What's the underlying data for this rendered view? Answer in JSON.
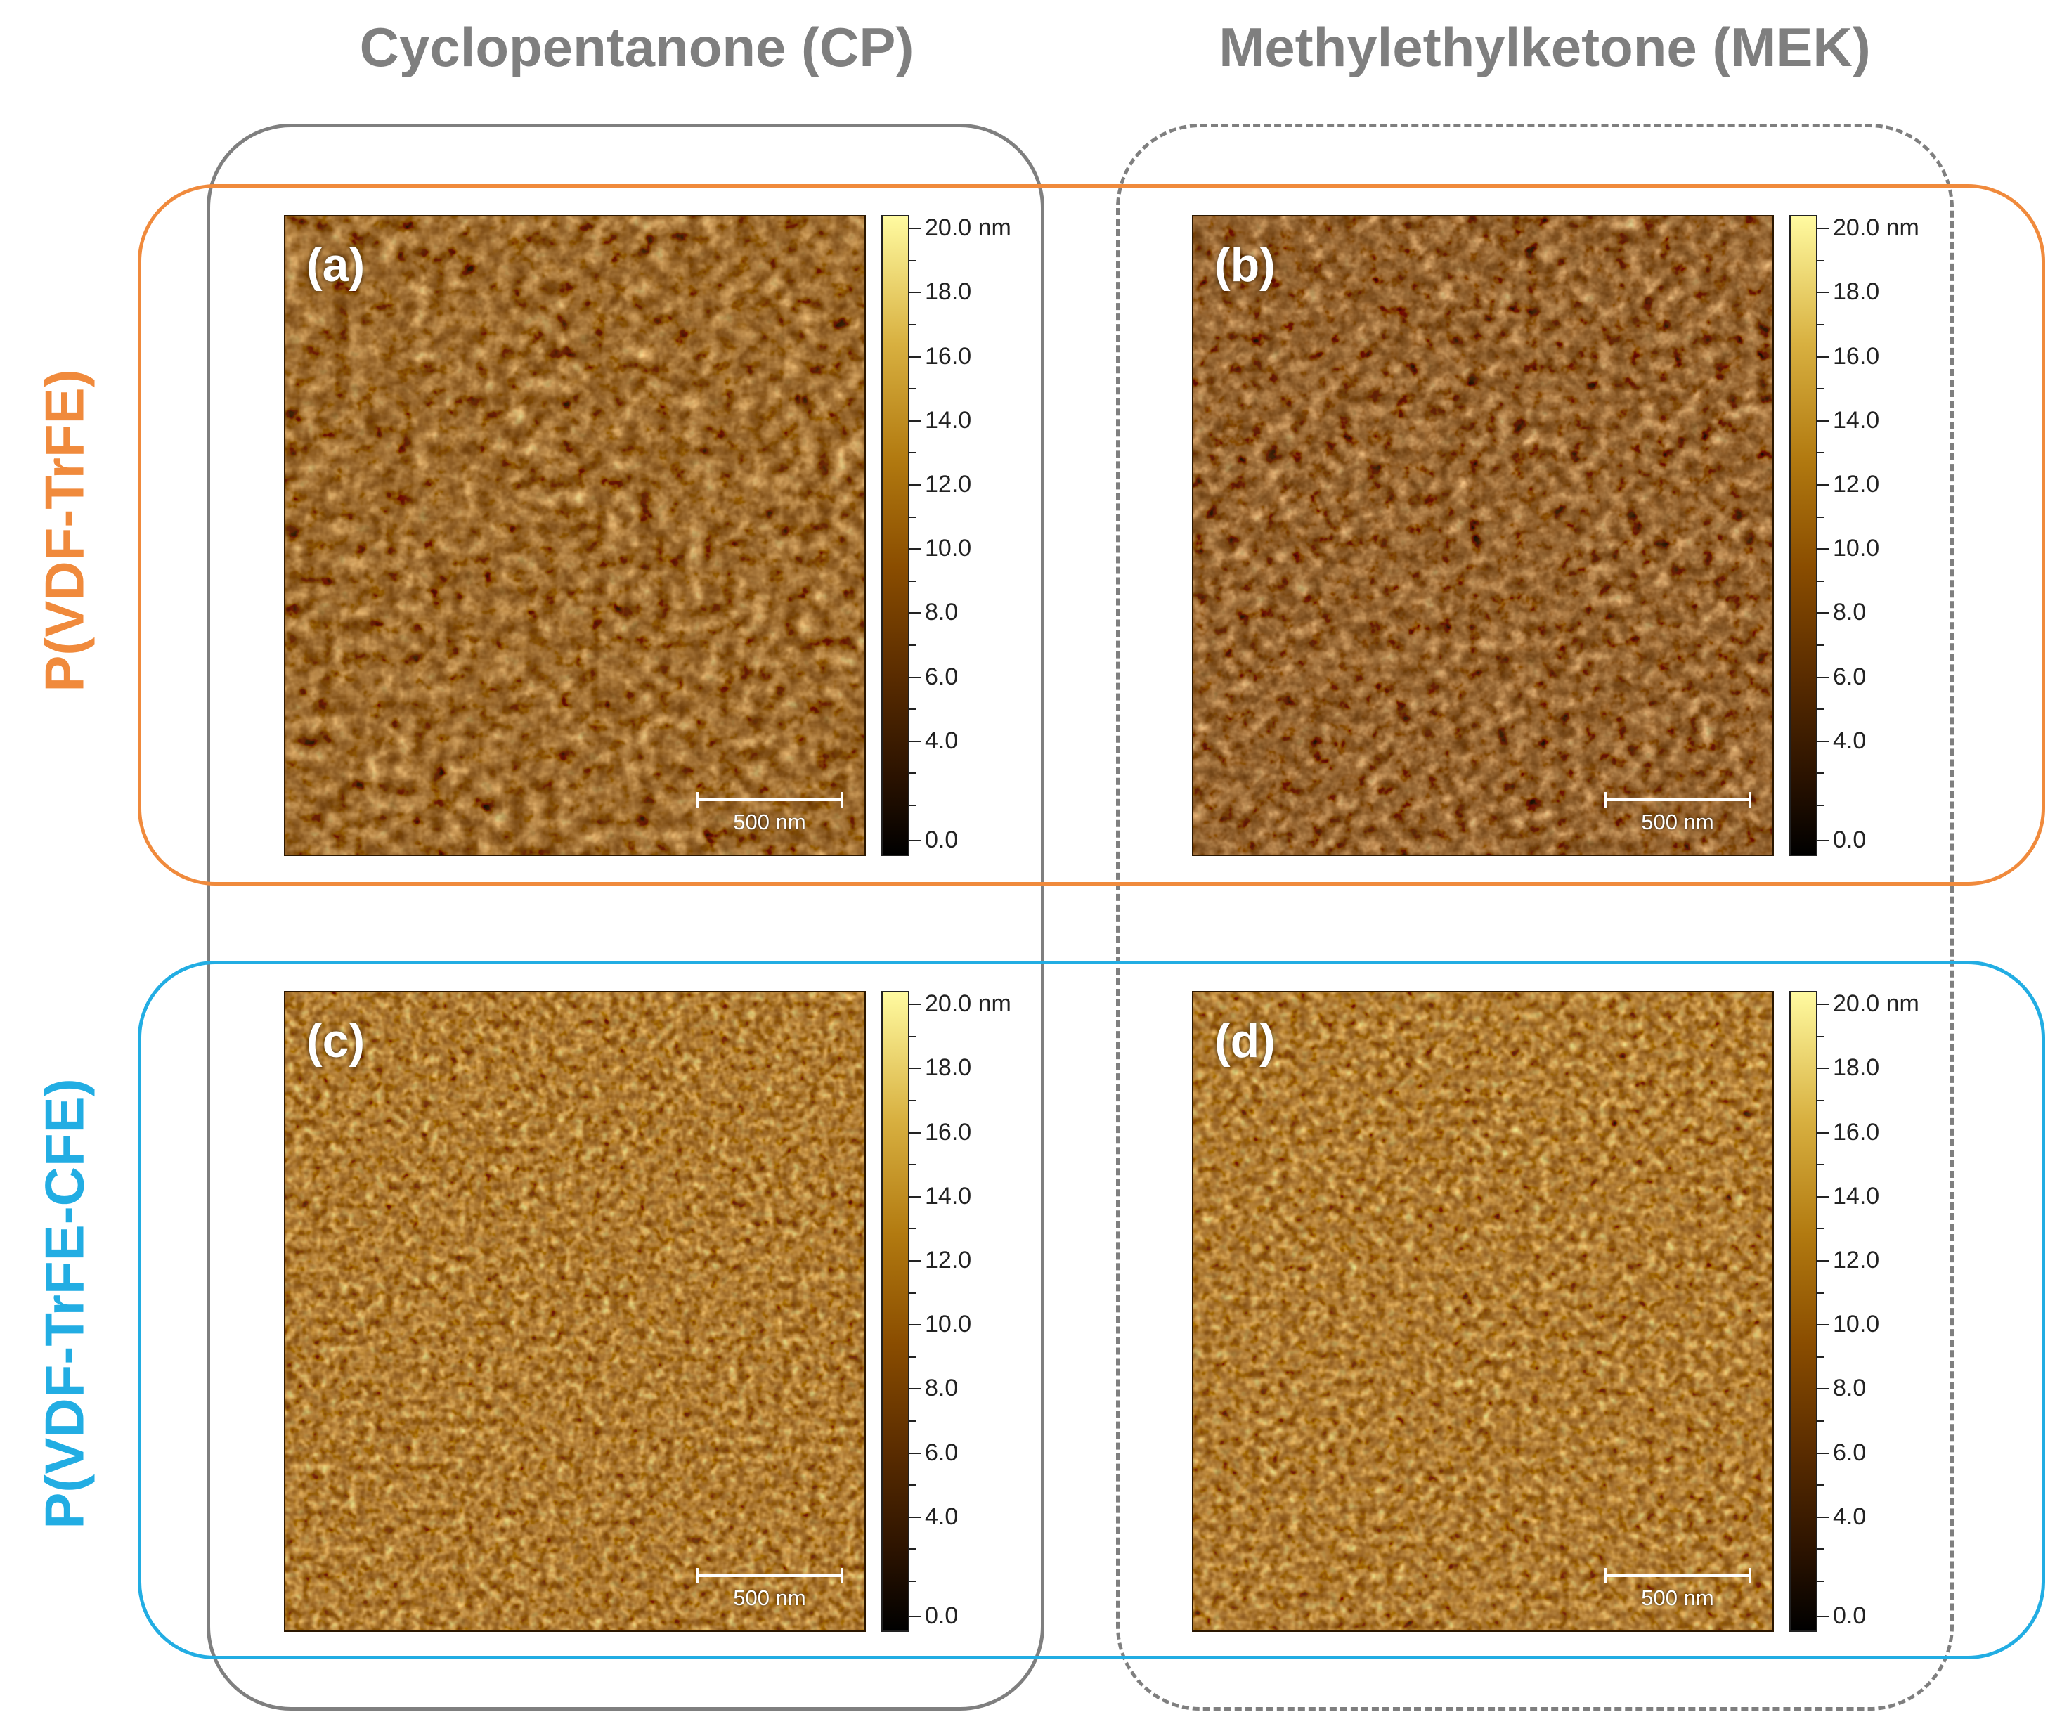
{
  "columns": {
    "cp": "Cyclopentanone (CP)",
    "mek": "Methylethylketone (MEK)"
  },
  "rows": {
    "trfe": "P(VDF-TrFE)",
    "cfe": "P(VDF-TrFE-CFE)"
  },
  "panels": [
    {
      "label": "(a)",
      "scale": "500 nm"
    },
    {
      "label": "(b)",
      "scale": "500 nm"
    },
    {
      "label": "(c)",
      "scale": "500 nm"
    },
    {
      "label": "(d)",
      "scale": "500 nm"
    }
  ],
  "colorbar": {
    "ticks": [
      "20.0 nm",
      "18.0",
      "16.0",
      "14.0",
      "12.0",
      "10.0",
      "8.0",
      "6.0",
      "4.0",
      "0.0"
    ]
  },
  "colors": {
    "trfe_frame": "#f08a3c",
    "cfe_frame": "#22ade3",
    "column_frame": "#7f7f7f"
  }
}
